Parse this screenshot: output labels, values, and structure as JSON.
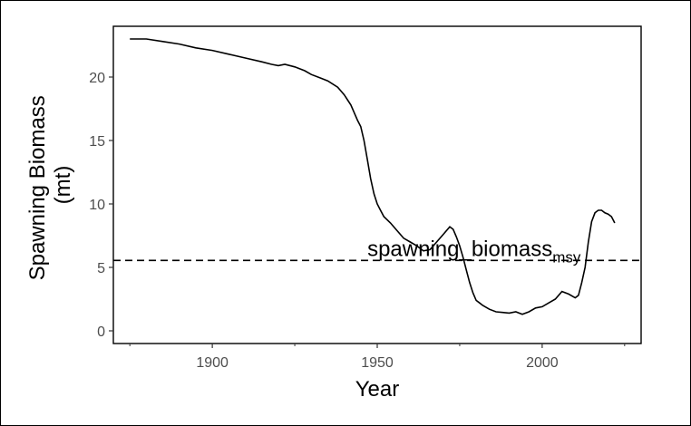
{
  "chart_data": {
    "type": "line",
    "title": "",
    "xlabel": "Year",
    "ylabel_lines": [
      "Spawning Biomass",
      "(mt)"
    ],
    "xlim": [
      1870,
      2030
    ],
    "ylim": [
      -1,
      24
    ],
    "x_ticks": [
      1900,
      1950,
      2000
    ],
    "x_minor_ticks": [
      1875,
      1925,
      1975,
      2025
    ],
    "y_ticks": [
      0,
      5,
      10,
      15,
      20
    ],
    "grid": false,
    "legend": "none",
    "line_color": "#000000",
    "reference_line": {
      "y": 5.55,
      "style": "dashed",
      "label_main": "spawning_biomass",
      "label_sub": "msy",
      "label_x": 1947
    },
    "series": [
      {
        "x": [
          1875,
          1880,
          1885,
          1890,
          1895,
          1900,
          1905,
          1910,
          1915,
          1918,
          1920,
          1922,
          1925,
          1928,
          1930,
          1933,
          1935,
          1938,
          1940,
          1942,
          1944,
          1945,
          1946,
          1947,
          1948,
          1949,
          1950,
          1951,
          1952,
          1954,
          1956,
          1958,
          1960,
          1962,
          1964,
          1966,
          1968,
          1970,
          1972,
          1973,
          1974,
          1975,
          1976,
          1977,
          1978,
          1979,
          1980,
          1981,
          1982,
          1984,
          1986,
          1988,
          1990,
          1992,
          1994,
          1996,
          1998,
          2000,
          2002,
          2004,
          2006,
          2008,
          2010,
          2011,
          2012,
          2013,
          2014,
          2015,
          2016,
          2017,
          2018,
          2019,
          2020,
          2021,
          2022
        ],
        "y": [
          23.0,
          23.0,
          22.8,
          22.6,
          22.3,
          22.1,
          21.8,
          21.5,
          21.2,
          21.0,
          20.9,
          21.0,
          20.8,
          20.5,
          20.2,
          19.9,
          19.7,
          19.2,
          18.6,
          17.8,
          16.6,
          16.1,
          15.0,
          13.5,
          12.0,
          10.8,
          10.0,
          9.5,
          9.0,
          8.5,
          7.9,
          7.3,
          7.0,
          6.7,
          6.3,
          6.4,
          7.0,
          7.6,
          8.2,
          8.0,
          7.4,
          6.7,
          5.8,
          4.8,
          3.8,
          3.0,
          2.4,
          2.2,
          2.0,
          1.7,
          1.5,
          1.45,
          1.4,
          1.5,
          1.3,
          1.5,
          1.8,
          1.9,
          2.2,
          2.5,
          3.1,
          2.9,
          2.6,
          2.8,
          3.8,
          5.0,
          7.0,
          8.6,
          9.3,
          9.5,
          9.5,
          9.3,
          9.2,
          9.0,
          8.5
        ]
      }
    ]
  }
}
